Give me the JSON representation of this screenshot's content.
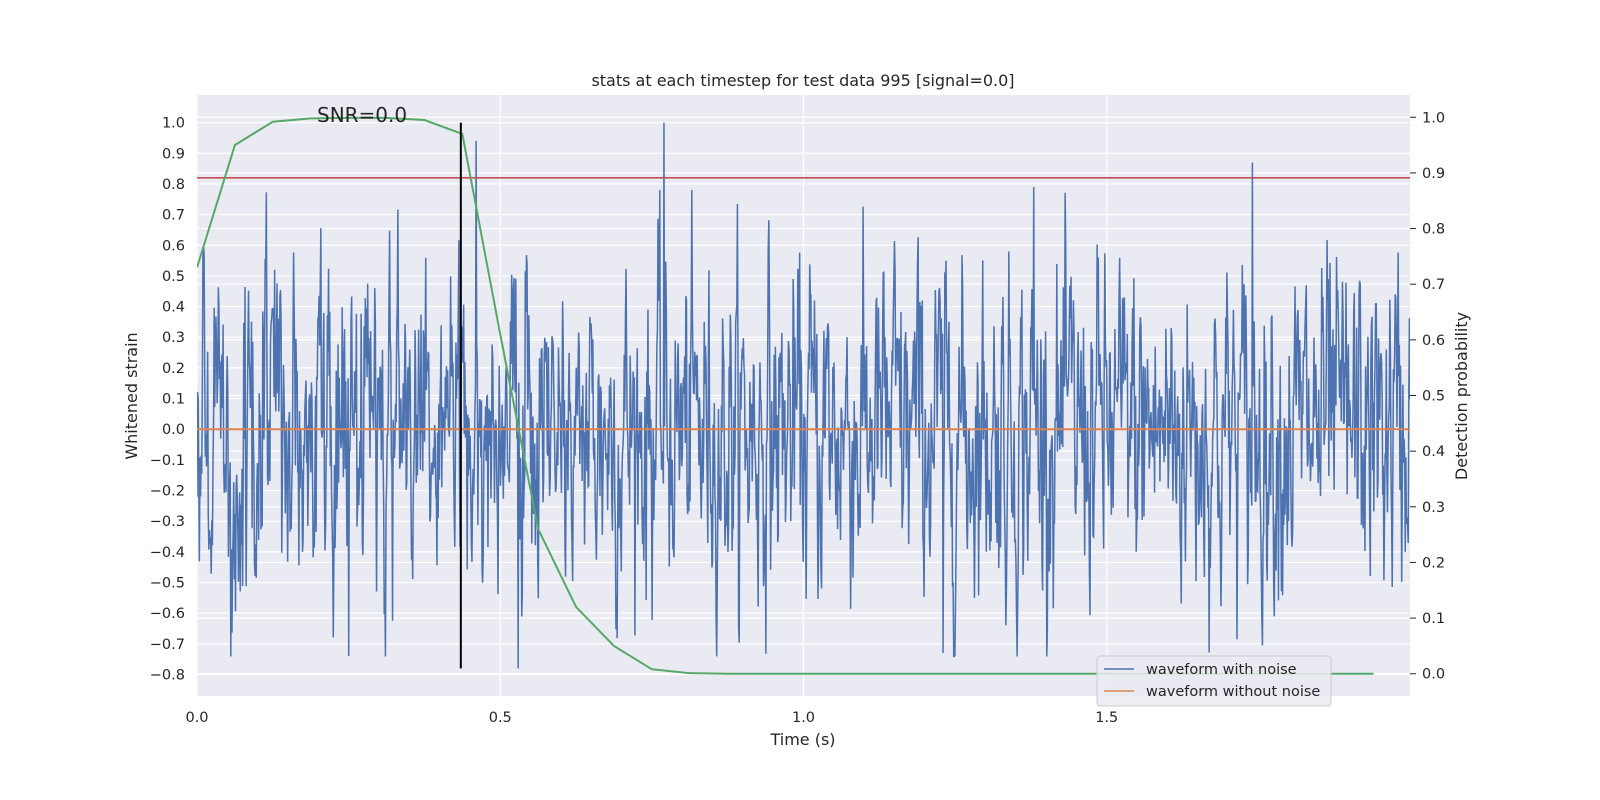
{
  "chart_data": {
    "type": "line",
    "title": "stats at each timestep for test data 995 [signal=0.0]",
    "xlabel": "Time (s)",
    "ylabel_left": "Whitened strain",
    "ylabel_right": "Detection probability",
    "annotation": "SNR=0.0",
    "xlim": [
      0.0,
      2.0
    ],
    "ylim_left": [
      -0.87,
      1.09
    ],
    "ylim_right": [
      -0.04,
      1.04
    ],
    "x_ticks": [
      {
        "v": 0.0,
        "label": "0.0"
      },
      {
        "v": 0.5,
        "label": "0.5"
      },
      {
        "v": 1.0,
        "label": "1.0"
      },
      {
        "v": 1.5,
        "label": "1.5"
      }
    ],
    "y_left_ticks": [
      {
        "v": 1.0,
        "label": "1.0"
      },
      {
        "v": 0.9,
        "label": "0.9"
      },
      {
        "v": 0.8,
        "label": "0.8"
      },
      {
        "v": 0.7,
        "label": "0.7"
      },
      {
        "v": 0.6,
        "label": "0.6"
      },
      {
        "v": 0.5,
        "label": "0.5"
      },
      {
        "v": 0.4,
        "label": "0.4"
      },
      {
        "v": 0.3,
        "label": "0.3"
      },
      {
        "v": 0.2,
        "label": "0.2"
      },
      {
        "v": 0.1,
        "label": "0.1"
      },
      {
        "v": 0.0,
        "label": "0.0"
      },
      {
        "v": -0.1,
        "label": "−0.1"
      },
      {
        "v": -0.2,
        "label": "−0.2"
      },
      {
        "v": -0.3,
        "label": "−0.3"
      },
      {
        "v": -0.4,
        "label": "−0.4"
      },
      {
        "v": -0.5,
        "label": "−0.5"
      },
      {
        "v": -0.6,
        "label": "−0.6"
      },
      {
        "v": -0.7,
        "label": "−0.7"
      },
      {
        "v": -0.8,
        "label": "−0.8"
      }
    ],
    "y_right_ticks": [
      {
        "v": 1.0,
        "label": "1.0"
      },
      {
        "v": 0.9,
        "label": "0.9"
      },
      {
        "v": 0.8,
        "label": "0.8"
      },
      {
        "v": 0.7,
        "label": "0.7"
      },
      {
        "v": 0.6,
        "label": "0.6"
      },
      {
        "v": 0.5,
        "label": "0.5"
      },
      {
        "v": 0.4,
        "label": "0.4"
      },
      {
        "v": 0.3,
        "label": "0.3"
      },
      {
        "v": 0.2,
        "label": "0.2"
      },
      {
        "v": 0.1,
        "label": "0.1"
      },
      {
        "v": 0.0,
        "label": "0.0"
      }
    ],
    "grid": true,
    "legend_position": "lower-right",
    "legend": [
      {
        "label": "waveform with noise",
        "color": "#4c72b0"
      },
      {
        "label": "waveform without noise",
        "color": "#dd8452"
      }
    ],
    "series": [
      {
        "name": "waveform with noise",
        "axis": "left",
        "color": "#4c72b0",
        "x_range": [
          0.0,
          2.0
        ],
        "samples": 2048,
        "approx_min": -0.78,
        "approx_max": 1.0,
        "notable_peaks": [
          {
            "x": 0.77,
            "y": 1.0
          },
          {
            "x": 0.46,
            "y": 0.94
          },
          {
            "x": 1.74,
            "y": 0.87
          },
          {
            "x": 1.38,
            "y": 0.79
          },
          {
            "x": 0.53,
            "y": -0.78
          },
          {
            "x": 0.25,
            "y": -0.74
          },
          {
            "x": 1.23,
            "y": -0.73
          }
        ]
      },
      {
        "name": "waveform without noise",
        "axis": "left",
        "color": "#dd8452",
        "x": [
          0.0,
          2.0
        ],
        "y": [
          0.0,
          0.0
        ]
      },
      {
        "axis": "right",
        "color": "#55a868",
        "x": [
          0.0,
          0.0625,
          0.125,
          0.1875,
          0.25,
          0.3125,
          0.375,
          0.4375,
          0.5,
          0.5625,
          0.625,
          0.6875,
          0.75,
          0.8125,
          0.875,
          1.0,
          1.5,
          1.94
        ],
        "y": [
          0.73,
          0.95,
          0.992,
          0.998,
          0.999,
          0.999,
          0.995,
          0.97,
          0.61,
          0.26,
          0.12,
          0.05,
          0.008,
          0.001,
          0.0,
          0.0,
          0.0,
          0.0
        ]
      }
    ],
    "threshold_line": {
      "axis": "left",
      "y": 0.82,
      "color": "#c44e52"
    },
    "marker_line": {
      "x": 0.435,
      "y_range": [
        -0.78,
        1.0
      ],
      "color": "#000000"
    }
  }
}
